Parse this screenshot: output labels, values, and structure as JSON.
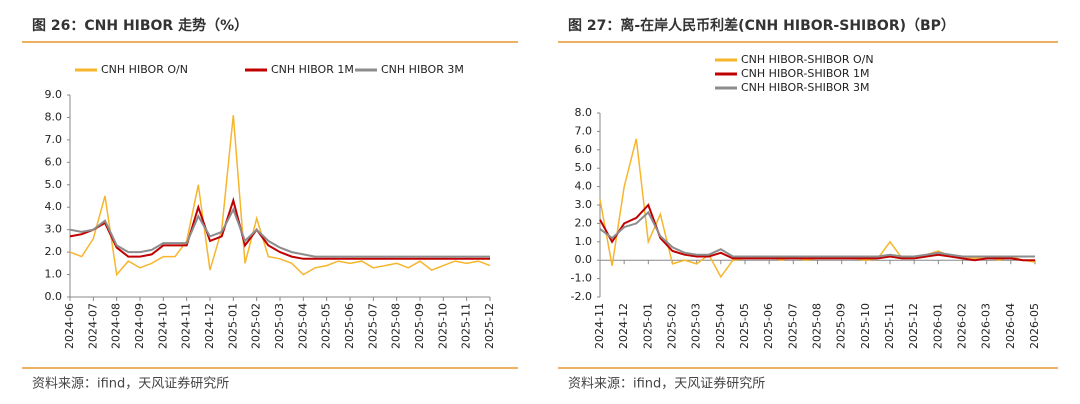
{
  "chart_data": [
    {
      "type": "line",
      "title": "图 26：CNH HIBOR 走势（%）",
      "source": "资料来源：ifind，天风证券研究所",
      "legend": "top",
      "legend_layout": "row",
      "categories": [
        "2024-06",
        null,
        "2024-07",
        null,
        "2024-08",
        null,
        "2024-09",
        null,
        "2024-10",
        null,
        "2024-11",
        null,
        "2024-12",
        null,
        "2025-01",
        null,
        "2025-02",
        null,
        "2025-03",
        null,
        "2025-04",
        null,
        "2025-05",
        null,
        "2025-06",
        null,
        "2025-07",
        null,
        "2025-08",
        null,
        "2025-09",
        null,
        "2025-10",
        null,
        "2025-11",
        null,
        "2025-12"
      ],
      "series": [
        {
          "name": "CNH HIBOR O/N",
          "color": "#f7b52c",
          "values": [
            2.0,
            1.8,
            2.6,
            4.5,
            1.0,
            1.6,
            1.3,
            1.5,
            1.8,
            1.8,
            2.5,
            5.0,
            1.2,
            3.0,
            8.1,
            1.5,
            3.5,
            1.8,
            1.7,
            1.5,
            1.0,
            1.3,
            1.4,
            1.6,
            1.5,
            1.6,
            1.3,
            1.4,
            1.5,
            1.3,
            1.6,
            1.2,
            1.4,
            1.6,
            1.5,
            1.6,
            1.4
          ]
        },
        {
          "name": "CNH HIBOR 1M",
          "color": "#c00000",
          "values": [
            2.7,
            2.8,
            3.0,
            3.3,
            2.2,
            1.8,
            1.8,
            1.9,
            2.3,
            2.3,
            2.3,
            4.0,
            2.5,
            2.7,
            4.3,
            2.3,
            3.0,
            2.3,
            2.0,
            1.8,
            1.7,
            1.7,
            1.7,
            1.7,
            1.7,
            1.7,
            1.7,
            1.7,
            1.7,
            1.7,
            1.7,
            1.7,
            1.7,
            1.7,
            1.7,
            1.7,
            1.7
          ]
        },
        {
          "name": "CNH HIBOR 3M",
          "color": "#8c8c8c",
          "values": [
            3.0,
            2.9,
            3.0,
            3.4,
            2.3,
            2.0,
            2.0,
            2.1,
            2.4,
            2.4,
            2.4,
            3.6,
            2.7,
            2.9,
            3.9,
            2.5,
            3.0,
            2.5,
            2.2,
            2.0,
            1.9,
            1.8,
            1.8,
            1.8,
            1.8,
            1.8,
            1.8,
            1.8,
            1.8,
            1.8,
            1.8,
            1.8,
            1.8,
            1.8,
            1.8,
            1.8,
            1.8
          ]
        }
      ],
      "ylim": [
        0,
        9
      ],
      "yticks": [
        {
          "value": 0,
          "label": "0.0"
        },
        {
          "value": 1,
          "label": "1.0"
        },
        {
          "value": 2,
          "label": "2.0"
        },
        {
          "value": 3,
          "label": "3.0"
        },
        {
          "value": 4,
          "label": "4.0"
        },
        {
          "value": 5,
          "label": "5.0"
        },
        {
          "value": 6,
          "label": "6.0"
        },
        {
          "value": 7,
          "label": "7.0"
        },
        {
          "value": 8,
          "label": "8.0"
        },
        {
          "value": 9,
          "label": "9.0"
        }
      ]
    },
    {
      "type": "line",
      "title": "图 27：离-在岸人民币利差(CNH HIBOR-SHIBOR)（BP）",
      "source": "资料来源：ifind，天风证券研究所",
      "legend": "top",
      "legend_layout": "column",
      "categories": [
        "2024-11",
        null,
        "2024-12",
        null,
        "2025-01",
        null,
        "2025-02",
        null,
        "2025-03",
        null,
        "2025-04",
        null,
        "2025-05",
        null,
        "2025-06",
        null,
        "2025-07",
        null,
        "2025-08",
        null,
        "2025-09",
        null,
        "2025-10",
        null,
        "2025-11",
        null,
        "2025-12",
        null,
        "2026-01",
        null,
        "2026-02",
        null,
        "2026-03",
        null,
        "2026-04",
        null,
        "2026-05"
      ],
      "series": [
        {
          "name": "CNH HIBOR-SHIBOR O/N",
          "color": "#f7b52c",
          "values": [
            3.3,
            -0.3,
            4.0,
            6.6,
            1.0,
            2.5,
            -0.2,
            0.0,
            -0.2,
            0.3,
            -0.9,
            0.0,
            0.1,
            0.2,
            0.2,
            0.0,
            0.2,
            0.0,
            0.1,
            0.1,
            0.2,
            0.1,
            0.0,
            0.1,
            1.0,
            0.1,
            0.2,
            0.3,
            0.5,
            0.2,
            0.2,
            0.1,
            0.2,
            0.0,
            0.2,
            0.0,
            -0.1
          ]
        },
        {
          "name": "CNH HIBOR-SHIBOR 1M",
          "color": "#c00000",
          "values": [
            2.2,
            1.0,
            2.0,
            2.3,
            3.0,
            1.2,
            0.5,
            0.3,
            0.2,
            0.2,
            0.4,
            0.1,
            0.1,
            0.1,
            0.1,
            0.1,
            0.1,
            0.1,
            0.1,
            0.1,
            0.1,
            0.1,
            0.1,
            0.1,
            0.2,
            0.1,
            0.1,
            0.2,
            0.3,
            0.2,
            0.1,
            0.0,
            0.1,
            0.1,
            0.1,
            0.0,
            0.0
          ]
        },
        {
          "name": "CNH HIBOR-SHIBOR 3M",
          "color": "#8c8c8c",
          "values": [
            1.7,
            1.2,
            1.8,
            2.0,
            2.6,
            1.3,
            0.7,
            0.4,
            0.3,
            0.3,
            0.6,
            0.2,
            0.2,
            0.2,
            0.2,
            0.2,
            0.2,
            0.2,
            0.2,
            0.2,
            0.2,
            0.2,
            0.2,
            0.2,
            0.3,
            0.2,
            0.2,
            0.3,
            0.4,
            0.3,
            0.2,
            0.2,
            0.2,
            0.2,
            0.2,
            0.2,
            0.2
          ]
        }
      ],
      "ylim": [
        -2,
        8
      ],
      "yticks": [
        {
          "value": -2,
          "label": "-2.0"
        },
        {
          "value": -1,
          "label": "-1.0"
        },
        {
          "value": 0,
          "label": "0.0"
        },
        {
          "value": 1,
          "label": "1.0"
        },
        {
          "value": 2,
          "label": "2.0"
        },
        {
          "value": 3,
          "label": "3.0"
        },
        {
          "value": 4,
          "label": "4.0"
        },
        {
          "value": 5,
          "label": "5.0"
        },
        {
          "value": 6,
          "label": "6.0"
        },
        {
          "value": 7,
          "label": "7.0"
        },
        {
          "value": 8,
          "label": "8.0"
        }
      ]
    }
  ]
}
